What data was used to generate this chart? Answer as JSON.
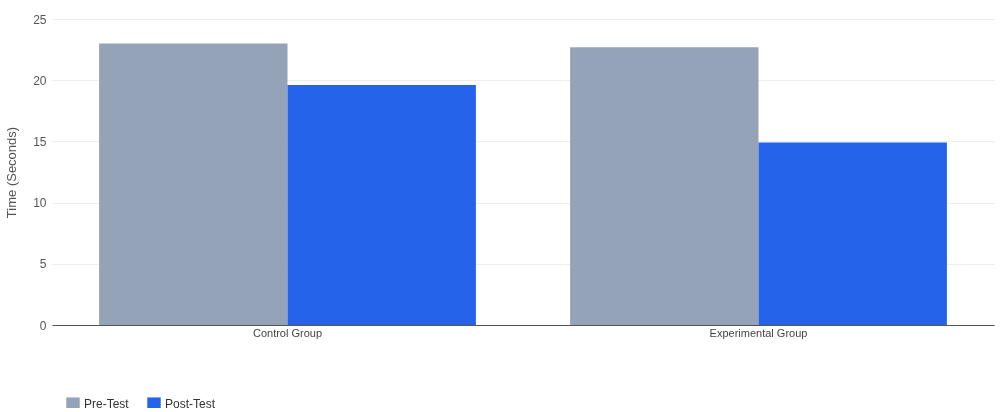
{
  "chart_data": {
    "type": "bar",
    "ylabel": "Time (Seconds)",
    "categories": [
      "Control Group",
      "Experimental Group"
    ],
    "series": [
      {
        "name": "Pre-Test",
        "color": "#94a3b8",
        "values": [
          23.0,
          22.7
        ]
      },
      {
        "name": "Post-Test",
        "color": "#2563eb",
        "values": [
          19.6,
          14.9
        ]
      }
    ],
    "ylim": [
      0,
      25
    ],
    "yticks": [
      0,
      5,
      10,
      15,
      20,
      25
    ],
    "grid": "y",
    "legend": "bottom left"
  }
}
